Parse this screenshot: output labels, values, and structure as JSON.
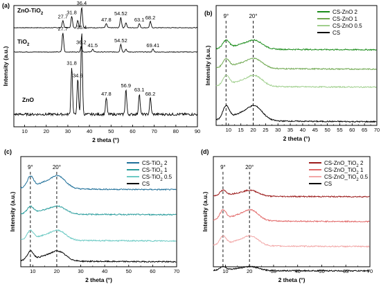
{
  "chart_data": [
    {
      "panel": "(a)",
      "type": "line",
      "xlabel": "2 theta (°)",
      "ylabel": "Intensity (a.u.)",
      "xlim": [
        5,
        90
      ],
      "xticks": [
        "10",
        "20",
        "30",
        "40",
        "50",
        "60",
        "70",
        "80",
        "90"
      ],
      "grid": false,
      "series": [
        {
          "name": "ZnO-TiO2",
          "label_main": "ZnO-TiO",
          "label_sub": "2",
          "color": "#000000",
          "peaks": [
            {
              "x": 27.7,
              "h": 0.35,
              "label": "27.7"
            },
            {
              "x": 31.8,
              "h": 0.55,
              "label": "31.8"
            },
            {
              "x": 34.6,
              "h": 0.35,
              "label": ""
            },
            {
              "x": 36.4,
              "h": 1.0,
              "label": "36.4"
            },
            {
              "x": 47.8,
              "h": 0.2,
              "label": "47.8"
            },
            {
              "x": 54.52,
              "h": 0.5,
              "label": "54.52"
            },
            {
              "x": 56.9,
              "h": 0.25,
              "label": ""
            },
            {
              "x": 63.1,
              "h": 0.2,
              "label": "63.1"
            },
            {
              "x": 68.2,
              "h": 0.3,
              "label": "68.2"
            }
          ]
        },
        {
          "name": "TiO2",
          "label_main": "TiO",
          "label_sub": "2",
          "color": "#000000",
          "peaks": [
            {
              "x": 27.7,
              "h": 1.0,
              "label": "27.7"
            },
            {
              "x": 36.2,
              "h": 0.3,
              "label": "36.2"
            },
            {
              "x": 41.5,
              "h": 0.15,
              "label": "41.5"
            },
            {
              "x": 54.52,
              "h": 0.4,
              "label": "54.52"
            },
            {
              "x": 56.9,
              "h": 0.15,
              "label": ""
            },
            {
              "x": 69.41,
              "h": 0.15,
              "label": "69.41"
            }
          ]
        },
        {
          "name": "ZnO",
          "label_main": "ZnO",
          "label_sub": "",
          "color": "#000000",
          "peaks": [
            {
              "x": 31.8,
              "h": 0.57,
              "label": "31.8"
            },
            {
              "x": 34.6,
              "h": 0.42,
              "label": "34.6"
            },
            {
              "x": 36.4,
              "h": 1.0,
              "label": "36.4"
            },
            {
              "x": 47.8,
              "h": 0.2,
              "label": "47.8"
            },
            {
              "x": 56.9,
              "h": 0.3,
              "label": "56.9"
            },
            {
              "x": 63.1,
              "h": 0.25,
              "label": "63.1"
            },
            {
              "x": 68.2,
              "h": 0.2,
              "label": "68.2"
            }
          ]
        }
      ]
    },
    {
      "panel": "(b)",
      "type": "line",
      "xlabel": "2 theta (°)",
      "ylabel": "Intensity (a.u.)",
      "xlim": [
        5,
        70
      ],
      "xticks": [
        "10",
        "15",
        "20",
        "25",
        "30",
        "35",
        "40",
        "45",
        "50",
        "55",
        "60",
        "65",
        "70"
      ],
      "reference_lines": [
        {
          "x": 9,
          "label": "9°"
        },
        {
          "x": 20,
          "label": "20°"
        }
      ],
      "legend_position": "top-right",
      "series": [
        {
          "name": "CS-ZnO 2",
          "label_main": "CS-ZnO 2",
          "label_sub": "",
          "color": "#1a8c1a",
          "amplitude": 0.9
        },
        {
          "name": "CS-ZnO 1",
          "label_main": "CS-ZnO 1",
          "label_sub": "",
          "color": "#6fa850",
          "amplitude": 1.0
        },
        {
          "name": "CS-ZnO 0.5",
          "label_main": "CS-ZnO 0.5",
          "label_sub": "",
          "color": "#9fcf8c",
          "amplitude": 1.1
        },
        {
          "name": "CS",
          "label_main": "CS",
          "label_sub": "",
          "color": "#000000",
          "amplitude": 1.5
        }
      ]
    },
    {
      "panel": "(c)",
      "type": "line",
      "xlabel": "2 theta (°)",
      "ylabel": "Intensity (a.u.)",
      "xlim": [
        5,
        70
      ],
      "xticks": [
        "10",
        "20",
        "30",
        "40",
        "50",
        "60",
        "70"
      ],
      "reference_lines": [
        {
          "x": 9,
          "label": "9°"
        },
        {
          "x": 20,
          "label": "20°"
        }
      ],
      "legend_position": "top-right",
      "series": [
        {
          "name": "CS-TiO2 2",
          "label_main": "CS-TiO",
          "label_sub": "2",
          "label_tail": " 2",
          "color": "#1e6f99",
          "amplitude": 1.3
        },
        {
          "name": "CS-TiO2 1",
          "label_main": "CS-TiO",
          "label_sub": "2",
          "label_tail": " 1",
          "color": "#2a9d9d",
          "amplitude": 0.8
        },
        {
          "name": "CS-TiO2 0.5",
          "label_main": "CS-TiO",
          "label_sub": "2",
          "label_tail": " 0.5",
          "color": "#6ccac4",
          "amplitude": 1.0
        },
        {
          "name": "CS",
          "label_main": "CS",
          "label_sub": "",
          "label_tail": "",
          "color": "#000000",
          "amplitude": 1.0
        }
      ]
    },
    {
      "panel": "(d)",
      "type": "line",
      "xlabel": "2 theta (°)",
      "ylabel": "Intensity (a.u.)",
      "xlim": [
        5,
        70
      ],
      "xticks": [
        "10",
        "20",
        "30",
        "40",
        "50",
        "60",
        "70"
      ],
      "reference_lines": [
        {
          "x": 9,
          "label": "9°"
        },
        {
          "x": 20,
          "label": "20°"
        }
      ],
      "legend_position": "top-right",
      "series": [
        {
          "name": "CS-ZnO_TiO2 2",
          "label_main": "CS-ZnO_TiO",
          "label_sub": "2",
          "label_tail": " 2",
          "color": "#9b1b1b",
          "amplitude": 0.6
        },
        {
          "name": "CS-ZnO_TiO2 1",
          "label_main": "CS-ZnO_TiO",
          "label_sub": "2",
          "label_tail": " 1",
          "color": "#e26a6a",
          "amplitude": 1.1
        },
        {
          "name": "CS-ZnO_TiO2 0.5",
          "label_main": "CS-ZnO_TiO",
          "label_sub": "2",
          "label_tail": " 0.5",
          "color": "#f2a6a6",
          "amplitude": 1.0
        },
        {
          "name": "CS",
          "label_main": "CS",
          "label_sub": "",
          "label_tail": "",
          "color": "#000000",
          "amplitude": 0.4
        }
      ]
    }
  ]
}
